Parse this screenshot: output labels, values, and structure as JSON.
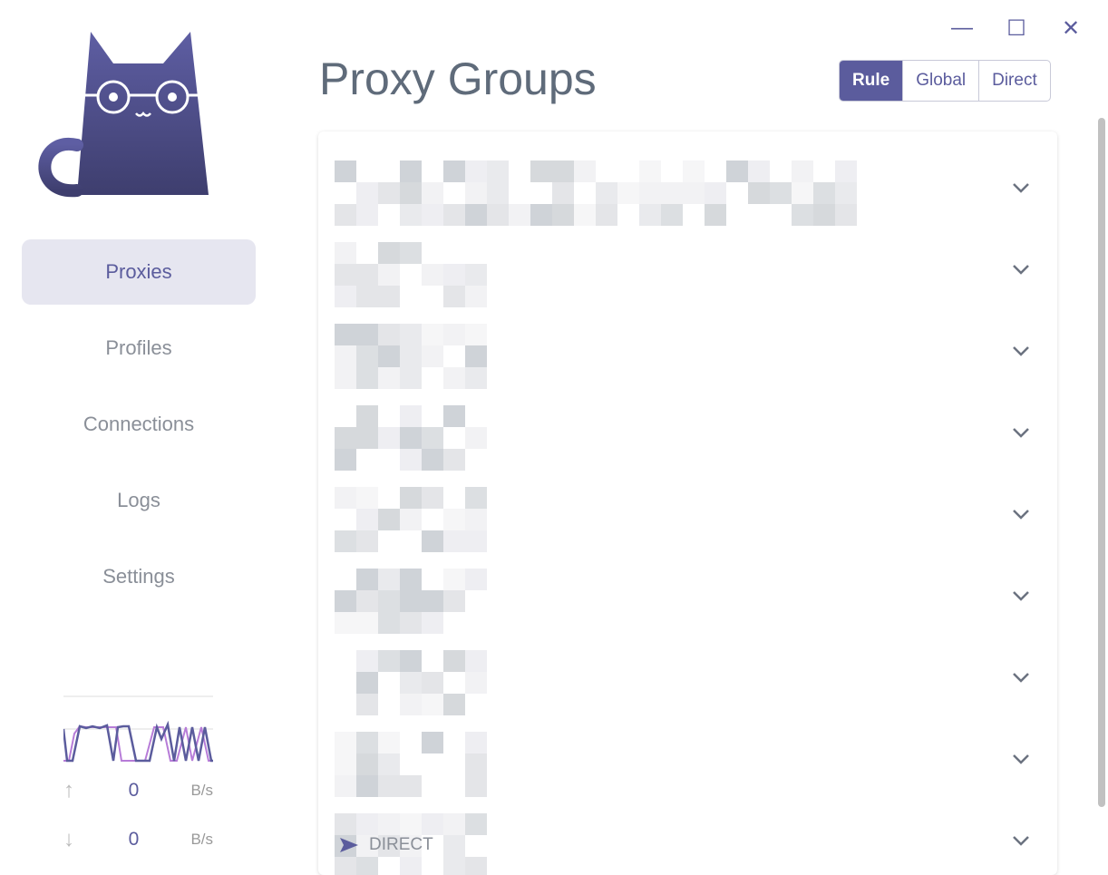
{
  "window": {
    "minimize_icon": "minimize-icon",
    "maximize_icon": "maximize-icon",
    "close_icon": "close-icon"
  },
  "sidebar": {
    "items": [
      {
        "label": "Proxies",
        "active": true
      },
      {
        "label": "Profiles"
      },
      {
        "label": "Connections"
      },
      {
        "label": "Logs"
      },
      {
        "label": "Settings"
      }
    ],
    "traffic": {
      "upload": "0",
      "upload_unit": "B/s",
      "download": "0",
      "download_unit": "B/s",
      "up_color": "#b77cd8",
      "down_color": "#5b5c9d"
    }
  },
  "header": {
    "title": "Proxy Groups",
    "modes": [
      {
        "label": "Rule",
        "active": true
      },
      {
        "label": "Global"
      },
      {
        "label": "Direct"
      }
    ]
  },
  "groups": {
    "count": 9,
    "last_visible_proxy": "DIRECT"
  },
  "colors": {
    "accent": "#5b5c9d"
  }
}
